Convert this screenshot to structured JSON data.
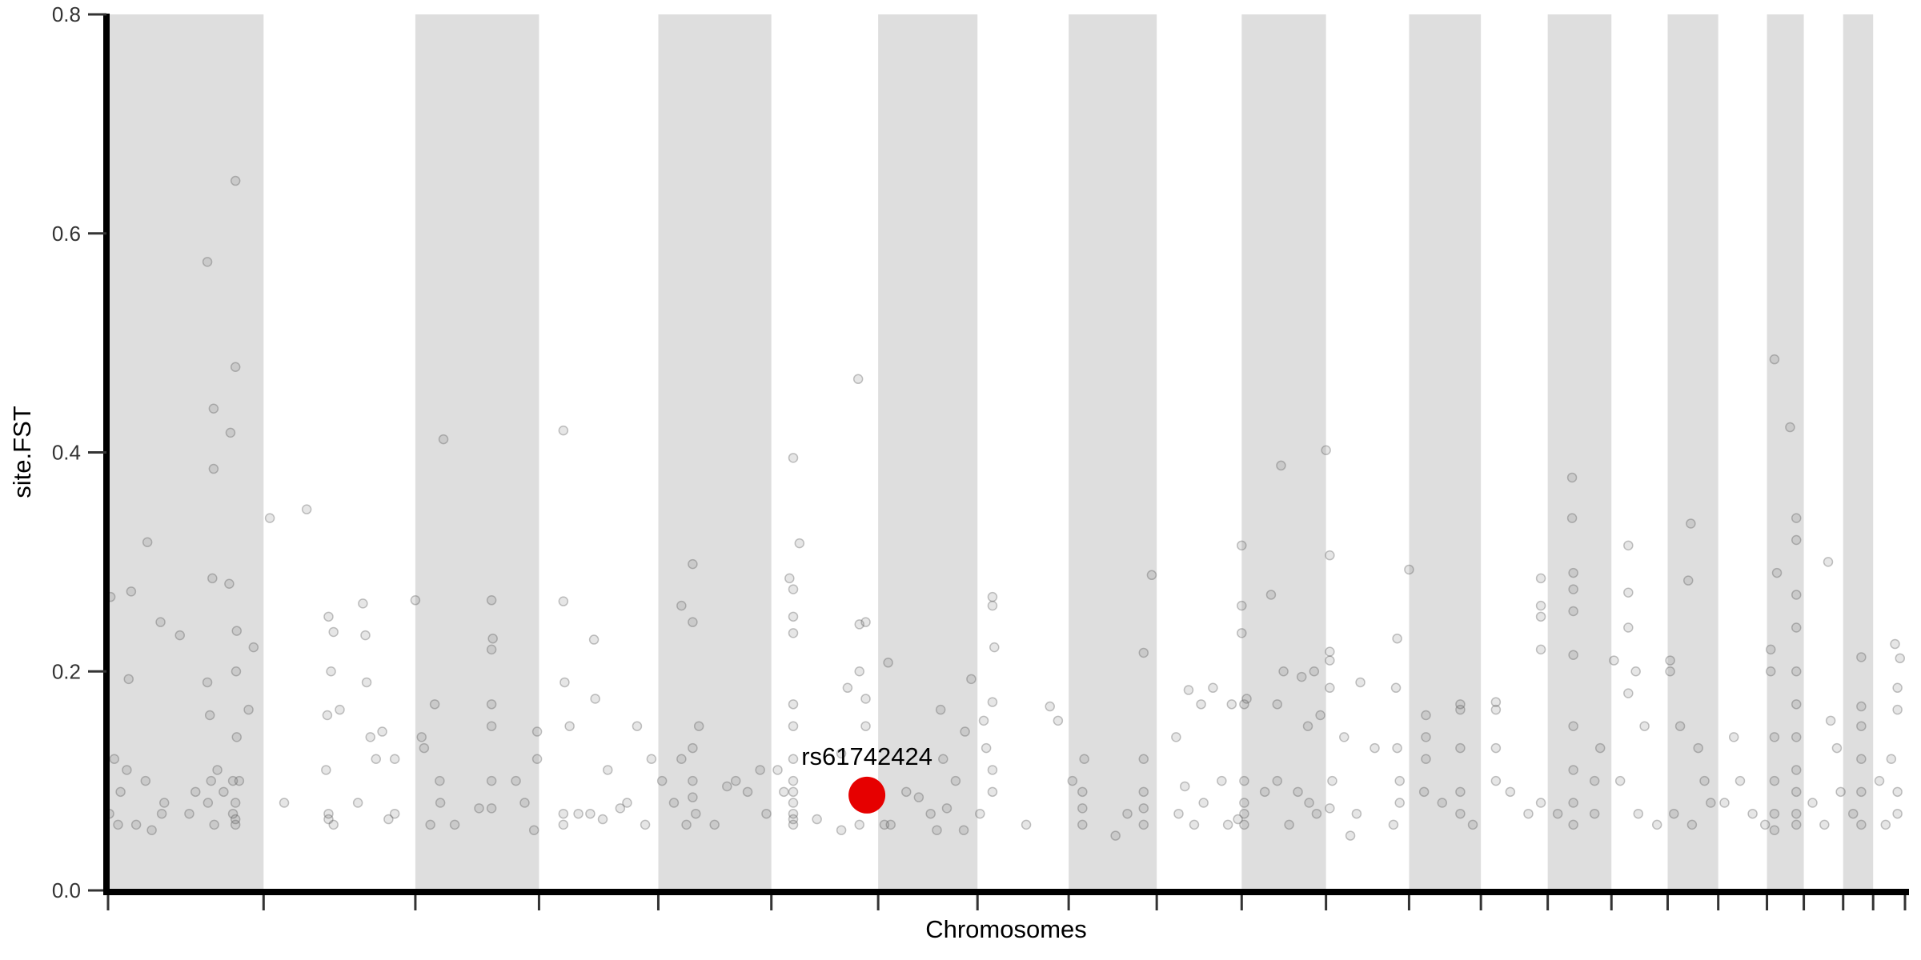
{
  "chart_data": {
    "type": "scatter",
    "title": "",
    "xlabel": "Chromosomes",
    "ylabel": "site.FST",
    "ylim": [
      0,
      0.8
    ],
    "yticks": [
      "0.0",
      "0.2",
      "0.4",
      "0.6",
      "0.8"
    ],
    "grid": false,
    "legend": "none",
    "colors": {
      "band": "#dedede",
      "point": "#555555",
      "highlight": "#e60000",
      "axis": "#000000"
    },
    "chromosome_lengths_mb": [
      249,
      243,
      198,
      191,
      181,
      171,
      159,
      146,
      141,
      136,
      135,
      133,
      115,
      107,
      102,
      90,
      81,
      78,
      59,
      63,
      48,
      51
    ],
    "highlight": {
      "label": "rs61742424",
      "chr": 6,
      "pos_mb": 153,
      "fst": 0.087
    },
    "points_by_chr": [
      [
        [
          4,
          0.268
        ],
        [
          33,
          0.193
        ],
        [
          37,
          0.273
        ],
        [
          63,
          0.318
        ],
        [
          84,
          0.245
        ],
        [
          115,
          0.233
        ],
        [
          159,
          0.574
        ],
        [
          169,
          0.44
        ],
        [
          169,
          0.385
        ],
        [
          167,
          0.285
        ],
        [
          196,
          0.418
        ],
        [
          204,
          0.478
        ],
        [
          204,
          0.648
        ],
        [
          194,
          0.28
        ],
        [
          206,
          0.237
        ],
        [
          233,
          0.222
        ],
        [
          225,
          0.165
        ],
        [
          159,
          0.19
        ],
        [
          163,
          0.16
        ],
        [
          206,
          0.14
        ],
        [
          200,
          0.1
        ],
        [
          20,
          0.09
        ],
        [
          10,
          0.12
        ],
        [
          45,
          0.06
        ],
        [
          90,
          0.08
        ],
        [
          86,
          0.07
        ],
        [
          160,
          0.08
        ],
        [
          175,
          0.11
        ],
        [
          204,
          0.06
        ],
        [
          204,
          0.08
        ],
        [
          30,
          0.11
        ],
        [
          60,
          0.1
        ],
        [
          130,
          0.07
        ],
        [
          140,
          0.09
        ],
        [
          200,
          0.07
        ],
        [
          205,
          0.2
        ],
        [
          2,
          0.07
        ],
        [
          16,
          0.06
        ],
        [
          70,
          0.055
        ],
        [
          165,
          0.1
        ],
        [
          170,
          0.06
        ],
        [
          185,
          0.09
        ],
        [
          204,
          0.065
        ],
        [
          210,
          0.1
        ]
      ],
      [
        [
          10,
          0.34
        ],
        [
          69,
          0.348
        ],
        [
          104,
          0.25
        ],
        [
          108,
          0.2
        ],
        [
          112,
          0.236
        ],
        [
          159,
          0.262
        ],
        [
          163,
          0.233
        ],
        [
          165,
          0.19
        ],
        [
          171,
          0.14
        ],
        [
          190,
          0.145
        ],
        [
          243,
          0.265
        ],
        [
          102,
          0.16
        ],
        [
          122,
          0.165
        ],
        [
          33,
          0.08
        ],
        [
          104,
          0.07
        ],
        [
          112,
          0.06
        ],
        [
          151,
          0.08
        ],
        [
          210,
          0.07
        ],
        [
          180,
          0.12
        ],
        [
          210,
          0.12
        ],
        [
          100,
          0.11
        ],
        [
          104,
          0.065
        ],
        [
          200,
          0.065
        ]
      ],
      [
        [
          45,
          0.412
        ],
        [
          31,
          0.17
        ],
        [
          10,
          0.14
        ],
        [
          39,
          0.1
        ],
        [
          122,
          0.265
        ],
        [
          124,
          0.23
        ],
        [
          122,
          0.22
        ],
        [
          122,
          0.17
        ],
        [
          122,
          0.15
        ],
        [
          122,
          0.1
        ],
        [
          122,
          0.075
        ],
        [
          102,
          0.075
        ],
        [
          195,
          0.145
        ],
        [
          195,
          0.12
        ],
        [
          161,
          0.1
        ],
        [
          24,
          0.06
        ],
        [
          63,
          0.06
        ],
        [
          190,
          0.055
        ],
        [
          14,
          0.13
        ],
        [
          40,
          0.08
        ],
        [
          175,
          0.08
        ]
      ],
      [
        [
          39,
          0.42
        ],
        [
          39,
          0.264
        ],
        [
          88,
          0.229
        ],
        [
          90,
          0.175
        ],
        [
          49,
          0.15
        ],
        [
          41,
          0.19
        ],
        [
          110,
          0.11
        ],
        [
          63,
          0.07
        ],
        [
          82,
          0.07
        ],
        [
          157,
          0.15
        ],
        [
          180,
          0.12
        ],
        [
          141,
          0.08
        ],
        [
          39,
          0.07
        ],
        [
          39,
          0.06
        ],
        [
          102,
          0.065
        ],
        [
          130,
          0.075
        ],
        [
          170,
          0.06
        ]
      ],
      [
        [
          55,
          0.298
        ],
        [
          37,
          0.26
        ],
        [
          55,
          0.245
        ],
        [
          65,
          0.15
        ],
        [
          55,
          0.13
        ],
        [
          37,
          0.12
        ],
        [
          25,
          0.08
        ],
        [
          55,
          0.1
        ],
        [
          55,
          0.085
        ],
        [
          45,
          0.06
        ],
        [
          6,
          0.1
        ],
        [
          124,
          0.1
        ],
        [
          143,
          0.09
        ],
        [
          163,
          0.11
        ],
        [
          173,
          0.07
        ],
        [
          60,
          0.07
        ],
        [
          90,
          0.06
        ],
        [
          110,
          0.095
        ]
      ],
      [
        [
          35,
          0.395
        ],
        [
          45,
          0.317
        ],
        [
          29,
          0.285
        ],
        [
          35,
          0.275
        ],
        [
          35,
          0.25
        ],
        [
          35,
          0.235
        ],
        [
          35,
          0.17
        ],
        [
          35,
          0.15
        ],
        [
          35,
          0.12
        ],
        [
          35,
          0.09
        ],
        [
          35,
          0.07
        ],
        [
          35,
          0.06
        ],
        [
          139,
          0.467
        ],
        [
          151,
          0.245
        ],
        [
          141,
          0.243
        ],
        [
          151,
          0.175
        ],
        [
          151,
          0.15
        ],
        [
          122,
          0.185
        ],
        [
          141,
          0.2
        ],
        [
          112,
          0.125
        ],
        [
          73,
          0.065
        ],
        [
          112,
          0.055
        ],
        [
          141,
          0.06
        ],
        [
          35,
          0.1
        ],
        [
          35,
          0.08
        ],
        [
          35,
          0.065
        ],
        [
          10,
          0.11
        ],
        [
          20,
          0.09
        ]
      ],
      [
        [
          16,
          0.208
        ],
        [
          45,
          0.09
        ],
        [
          10,
          0.06
        ],
        [
          84,
          0.07
        ],
        [
          100,
          0.165
        ],
        [
          139,
          0.145
        ],
        [
          149,
          0.193
        ],
        [
          104,
          0.12
        ],
        [
          65,
          0.085
        ],
        [
          137,
          0.055
        ],
        [
          94,
          0.055
        ],
        [
          124,
          0.1
        ],
        [
          20,
          0.06
        ],
        [
          110,
          0.075
        ]
      ],
      [
        [
          24,
          0.268
        ],
        [
          24,
          0.26
        ],
        [
          27,
          0.222
        ],
        [
          10,
          0.155
        ],
        [
          24,
          0.172
        ],
        [
          14,
          0.13
        ],
        [
          24,
          0.09
        ],
        [
          78,
          0.06
        ],
        [
          116,
          0.168
        ],
        [
          129,
          0.155
        ],
        [
          4,
          0.07
        ],
        [
          24,
          0.11
        ]
      ],
      [
        [
          133,
          0.288
        ],
        [
          120,
          0.217
        ],
        [
          120,
          0.12
        ],
        [
          120,
          0.09
        ],
        [
          120,
          0.06
        ],
        [
          25,
          0.12
        ],
        [
          22,
          0.09
        ],
        [
          22,
          0.06
        ],
        [
          75,
          0.05
        ],
        [
          6,
          0.1
        ],
        [
          94,
          0.07
        ],
        [
          120,
          0.075
        ],
        [
          22,
          0.075
        ]
      ],
      [
        [
          31,
          0.14
        ],
        [
          51,
          0.183
        ],
        [
          71,
          0.17
        ],
        [
          90,
          0.185
        ],
        [
          120,
          0.17
        ],
        [
          35,
          0.07
        ],
        [
          75,
          0.08
        ],
        [
          114,
          0.06
        ],
        [
          104,
          0.1
        ],
        [
          45,
          0.095
        ],
        [
          60,
          0.06
        ],
        [
          130,
          0.065
        ]
      ],
      [
        [
          0,
          0.315
        ],
        [
          0,
          0.26
        ],
        [
          0,
          0.235
        ],
        [
          8,
          0.175
        ],
        [
          4,
          0.17
        ],
        [
          4,
          0.1
        ],
        [
          4,
          0.08
        ],
        [
          4,
          0.06
        ],
        [
          47,
          0.27
        ],
        [
          63,
          0.388
        ],
        [
          67,
          0.2
        ],
        [
          57,
          0.17
        ],
        [
          96,
          0.195
        ],
        [
          106,
          0.15
        ],
        [
          116,
          0.2
        ],
        [
          126,
          0.16
        ],
        [
          108,
          0.08
        ],
        [
          76,
          0.06
        ],
        [
          57,
          0.1
        ],
        [
          37,
          0.09
        ],
        [
          4,
          0.07
        ],
        [
          90,
          0.09
        ],
        [
          120,
          0.07
        ]
      ],
      [
        [
          0,
          0.402
        ],
        [
          6,
          0.306
        ],
        [
          6,
          0.218
        ],
        [
          6,
          0.21
        ],
        [
          6,
          0.185
        ],
        [
          55,
          0.19
        ],
        [
          10,
          0.1
        ],
        [
          29,
          0.14
        ],
        [
          49,
          0.07
        ],
        [
          78,
          0.13
        ],
        [
          114,
          0.13
        ],
        [
          112,
          0.185
        ],
        [
          114,
          0.23
        ],
        [
          118,
          0.1
        ],
        [
          118,
          0.08
        ],
        [
          108,
          0.06
        ],
        [
          39,
          0.05
        ],
        [
          6,
          0.075
        ]
      ],
      [
        [
          0,
          0.293
        ],
        [
          27,
          0.16
        ],
        [
          27,
          0.14
        ],
        [
          27,
          0.12
        ],
        [
          24,
          0.09
        ],
        [
          53,
          0.08
        ],
        [
          82,
          0.17
        ],
        [
          82,
          0.165
        ],
        [
          82,
          0.13
        ],
        [
          82,
          0.09
        ],
        [
          82,
          0.07
        ],
        [
          102,
          0.06
        ]
      ],
      [
        [
          24,
          0.172
        ],
        [
          24,
          0.165
        ],
        [
          24,
          0.13
        ],
        [
          24,
          0.1
        ],
        [
          47,
          0.09
        ],
        [
          76,
          0.07
        ],
        [
          96,
          0.285
        ],
        [
          96,
          0.26
        ],
        [
          96,
          0.25
        ],
        [
          96,
          0.22
        ],
        [
          96,
          0.08
        ]
      ],
      [
        [
          39,
          0.377
        ],
        [
          39,
          0.34
        ],
        [
          41,
          0.29
        ],
        [
          41,
          0.275
        ],
        [
          41,
          0.255
        ],
        [
          41,
          0.215
        ],
        [
          41,
          0.15
        ],
        [
          41,
          0.11
        ],
        [
          41,
          0.08
        ],
        [
          41,
          0.06
        ],
        [
          75,
          0.1
        ],
        [
          75,
          0.07
        ],
        [
          84,
          0.13
        ],
        [
          16,
          0.07
        ]
      ],
      [
        [
          27,
          0.315
        ],
        [
          27,
          0.272
        ],
        [
          27,
          0.24
        ],
        [
          27,
          0.18
        ],
        [
          39,
          0.2
        ],
        [
          53,
          0.15
        ],
        [
          4,
          0.21
        ],
        [
          14,
          0.1
        ],
        [
          43,
          0.07
        ],
        [
          73,
          0.06
        ]
      ],
      [
        [
          37,
          0.335
        ],
        [
          33,
          0.283
        ],
        [
          4,
          0.21
        ],
        [
          4,
          0.2
        ],
        [
          20,
          0.15
        ],
        [
          49,
          0.13
        ],
        [
          59,
          0.1
        ],
        [
          69,
          0.08
        ],
        [
          39,
          0.06
        ],
        [
          10,
          0.07
        ]
      ],
      [
        [
          10,
          0.08
        ],
        [
          35,
          0.1
        ],
        [
          55,
          0.07
        ],
        [
          75,
          0.06
        ],
        [
          25,
          0.14
        ]
      ],
      [
        [
          12,
          0.485
        ],
        [
          16,
          0.29
        ],
        [
          6,
          0.22
        ],
        [
          6,
          0.2
        ],
        [
          37,
          0.423
        ],
        [
          47,
          0.34
        ],
        [
          47,
          0.32
        ],
        [
          47,
          0.27
        ],
        [
          47,
          0.24
        ],
        [
          47,
          0.2
        ],
        [
          47,
          0.17
        ],
        [
          47,
          0.14
        ],
        [
          47,
          0.11
        ],
        [
          47,
          0.09
        ],
        [
          47,
          0.07
        ],
        [
          47,
          0.06
        ],
        [
          12,
          0.14
        ],
        [
          12,
          0.1
        ],
        [
          12,
          0.07
        ],
        [
          12,
          0.055
        ]
      ],
      [
        [
          39,
          0.3
        ],
        [
          43,
          0.155
        ],
        [
          53,
          0.13
        ],
        [
          14,
          0.08
        ],
        [
          33,
          0.06
        ],
        [
          59,
          0.09
        ]
      ],
      [
        [
          29,
          0.213
        ],
        [
          29,
          0.168
        ],
        [
          29,
          0.15
        ],
        [
          29,
          0.12
        ],
        [
          29,
          0.09
        ],
        [
          29,
          0.06
        ],
        [
          16,
          0.07
        ]
      ],
      [
        [
          35,
          0.225
        ],
        [
          43,
          0.212
        ],
        [
          39,
          0.185
        ],
        [
          39,
          0.165
        ],
        [
          29,
          0.12
        ],
        [
          39,
          0.09
        ],
        [
          39,
          0.07
        ],
        [
          20,
          0.06
        ],
        [
          10,
          0.1
        ]
      ]
    ]
  }
}
